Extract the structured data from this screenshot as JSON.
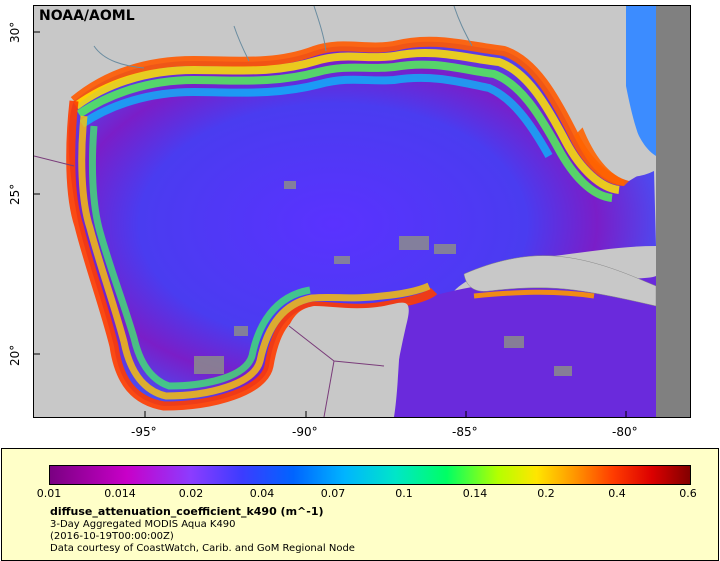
{
  "map": {
    "attribution": "NOAA/AOML",
    "lat_labels": [
      "30°",
      "25°",
      "20°"
    ],
    "lon_labels": [
      "-95°",
      "-90°",
      "-85°",
      "-80°"
    ]
  },
  "legend": {
    "ticks": [
      "0.01",
      "0.014",
      "0.02",
      "0.04",
      "0.07",
      "0.1",
      "0.14",
      "0.2",
      "0.4",
      "0.6"
    ],
    "title": "diffuse_attenuation_coefficient_k490 (m^-1)",
    "line1": "3-Day Aggregated MODIS Aqua K490",
    "line2": "(2016-10-19T00:00:00Z)",
    "line3": "Data courtesy of CoastWatch, Carib. and GoM Regional Node"
  }
}
